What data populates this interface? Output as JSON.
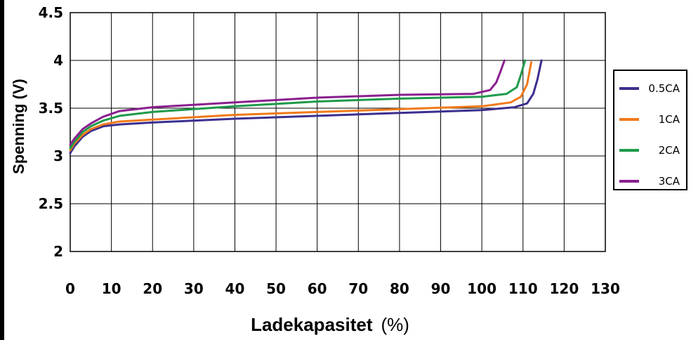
{
  "chart_data": {
    "type": "line",
    "xlabel": "Ladekapasitet",
    "xlabel_unit": "(%)",
    "ylabel": "Spenning (V)",
    "xlim": [
      0,
      130
    ],
    "ylim": [
      2,
      4.5
    ],
    "x_ticks": [
      0,
      10,
      20,
      30,
      40,
      50,
      60,
      70,
      80,
      90,
      100,
      110,
      120,
      130
    ],
    "y_ticks": [
      2,
      2.5,
      3,
      3.5,
      4,
      4.5
    ],
    "y_tick_labels": [
      "2",
      "2.5",
      "3",
      "3.5",
      "4",
      "4.5"
    ],
    "grid": true,
    "legend_position": "right",
    "series": [
      {
        "name": "0.5CA",
        "color": "#3b2f8f",
        "points": [
          [
            0,
            3.03
          ],
          [
            1,
            3.1
          ],
          [
            3,
            3.2
          ],
          [
            5,
            3.26
          ],
          [
            8,
            3.31
          ],
          [
            12,
            3.33
          ],
          [
            20,
            3.35
          ],
          [
            40,
            3.39
          ],
          [
            60,
            3.42
          ],
          [
            80,
            3.45
          ],
          [
            100,
            3.48
          ],
          [
            108,
            3.51
          ],
          [
            111,
            3.55
          ],
          [
            112.5,
            3.65
          ],
          [
            113.5,
            3.8
          ],
          [
            114.5,
            4.0
          ]
        ]
      },
      {
        "name": "1CA",
        "color": "#f07a1a",
        "points": [
          [
            0,
            3.06
          ],
          [
            1,
            3.13
          ],
          [
            3,
            3.22
          ],
          [
            5,
            3.28
          ],
          [
            8,
            3.33
          ],
          [
            12,
            3.36
          ],
          [
            20,
            3.38
          ],
          [
            40,
            3.43
          ],
          [
            60,
            3.46
          ],
          [
            80,
            3.49
          ],
          [
            100,
            3.52
          ],
          [
            107,
            3.56
          ],
          [
            109.5,
            3.62
          ],
          [
            111,
            3.75
          ],
          [
            112,
            3.98
          ]
        ]
      },
      {
        "name": "2CA",
        "color": "#1f9a4a",
        "points": [
          [
            0,
            3.08
          ],
          [
            1,
            3.15
          ],
          [
            3,
            3.25
          ],
          [
            5,
            3.31
          ],
          [
            8,
            3.37
          ],
          [
            12,
            3.42
          ],
          [
            20,
            3.46
          ],
          [
            40,
            3.52
          ],
          [
            60,
            3.57
          ],
          [
            80,
            3.6
          ],
          [
            100,
            3.62
          ],
          [
            106,
            3.65
          ],
          [
            108.5,
            3.72
          ],
          [
            109.5,
            3.85
          ],
          [
            110.5,
            4.0
          ]
        ]
      },
      {
        "name": "3CA",
        "color": "#8a1f8f",
        "points": [
          [
            0,
            3.12
          ],
          [
            1,
            3.18
          ],
          [
            3,
            3.28
          ],
          [
            5,
            3.34
          ],
          [
            8,
            3.41
          ],
          [
            12,
            3.47
          ],
          [
            20,
            3.51
          ],
          [
            40,
            3.56
          ],
          [
            60,
            3.61
          ],
          [
            80,
            3.64
          ],
          [
            98,
            3.65
          ],
          [
            102,
            3.69
          ],
          [
            103.5,
            3.77
          ],
          [
            104.5,
            3.88
          ],
          [
            105.5,
            4.0
          ]
        ]
      }
    ]
  }
}
